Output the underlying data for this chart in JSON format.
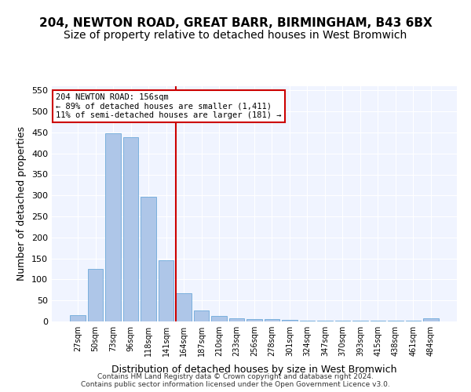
{
  "title1": "204, NEWTON ROAD, GREAT BARR, BIRMINGHAM, B43 6BX",
  "title2": "Size of property relative to detached houses in West Bromwich",
  "xlabel": "Distribution of detached houses by size in West Bromwich",
  "ylabel": "Number of detached properties",
  "categories": [
    "27sqm",
    "50sqm",
    "73sqm",
    "96sqm",
    "118sqm",
    "141sqm",
    "164sqm",
    "187sqm",
    "210sqm",
    "233sqm",
    "256sqm",
    "278sqm",
    "301sqm",
    "324sqm",
    "347sqm",
    "370sqm",
    "393sqm",
    "415sqm",
    "438sqm",
    "461sqm",
    "484sqm"
  ],
  "values": [
    15,
    126,
    448,
    438,
    297,
    145,
    68,
    27,
    14,
    8,
    5,
    5,
    3,
    2,
    2,
    2,
    2,
    1,
    1,
    1,
    7
  ],
  "bar_color": "#aec6e8",
  "bar_edge_color": "#5a9fd4",
  "vline_x": 6,
  "vline_color": "#cc0000",
  "annotation_text": "204 NEWTON ROAD: 156sqm\n← 89% of detached houses are smaller (1,411)\n11% of semi-detached houses are larger (181) →",
  "annotation_box_color": "#ffffff",
  "annotation_box_edge": "#cc0000",
  "ylim": [
    0,
    560
  ],
  "yticks": [
    0,
    50,
    100,
    150,
    200,
    250,
    300,
    350,
    400,
    450,
    500,
    550
  ],
  "background_color": "#f0f4ff",
  "footer": "Contains HM Land Registry data © Crown copyright and database right 2024.\nContains public sector information licensed under the Open Government Licence v3.0.",
  "title1_fontsize": 11,
  "title2_fontsize": 10,
  "xlabel_fontsize": 9,
  "ylabel_fontsize": 9
}
